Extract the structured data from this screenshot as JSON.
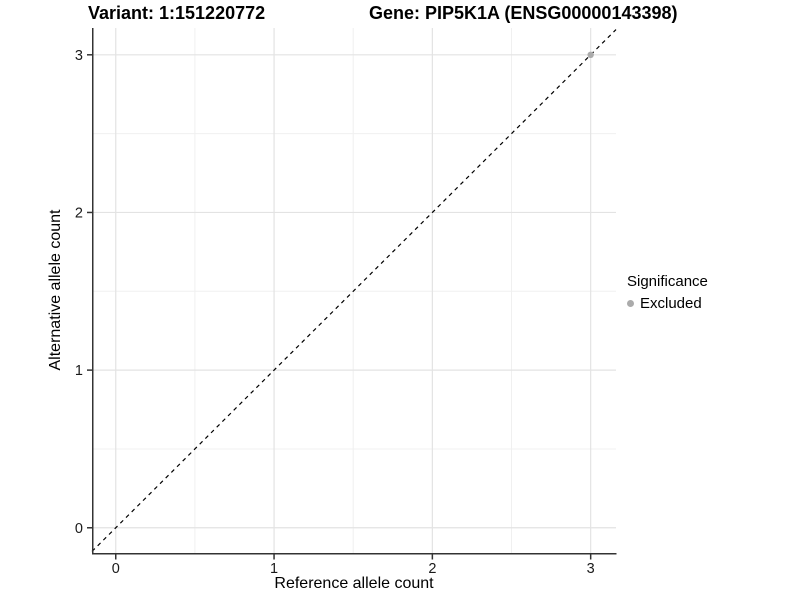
{
  "chart_data": {
    "type": "scatter",
    "titles": {
      "left": "Variant: 1:151220772",
      "right": "Gene: PIP5K1A (ENSG00000143398)"
    },
    "xlabel": "Reference allele count",
    "ylabel": "Alternative allele count",
    "xlim": [
      -0.15,
      3.16
    ],
    "ylim": [
      -0.16,
      3.17
    ],
    "x_ticks": [
      0,
      1,
      2,
      3
    ],
    "y_ticks": [
      0,
      1,
      2,
      3
    ],
    "x_minor_ticks": [
      0.5,
      1.5,
      2.5
    ],
    "y_minor_ticks": [
      0.5,
      1.5,
      2.5
    ],
    "grid": "major+minor",
    "reference_line": {
      "type": "identity",
      "slope": 1,
      "intercept": 0,
      "style": "dashed",
      "color": "#000000"
    },
    "series": [
      {
        "name": "Excluded",
        "marker": "circle",
        "color": "#ababab",
        "points": [
          [
            3,
            3
          ]
        ]
      }
    ],
    "legend": {
      "title": "Significance",
      "position": "right",
      "items": [
        {
          "label": "Excluded",
          "color": "#ababab"
        }
      ]
    },
    "colors": {
      "background": "#ffffff",
      "grid_major": "#e3e3e3",
      "grid_minor": "#f0f0f0",
      "axis_line": "#333333",
      "tick_label": "#1a1a1a",
      "title": "#000000"
    }
  }
}
